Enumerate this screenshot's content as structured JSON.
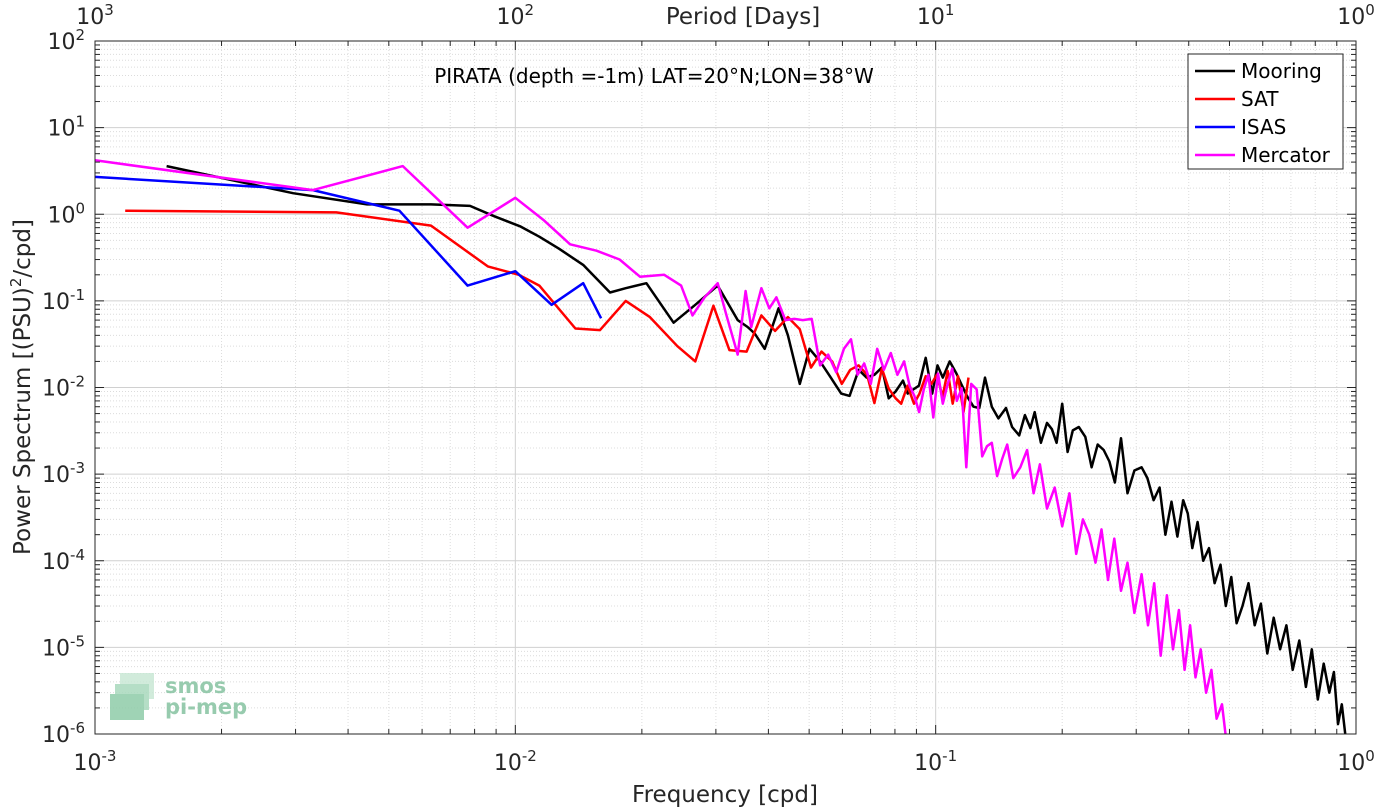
{
  "chart_data": {
    "type": "line",
    "title": "PIRATA (depth =-1m) LAT=20°N;LON=38°W",
    "xlabel": "Frequency [cpd]",
    "ylabel": "Power Spectrum [(PSU)^2/cpd]",
    "top_xlabel": "Period [Days]",
    "x_scale": "log",
    "y_scale": "log",
    "xlim": [
      0.001,
      1
    ],
    "ylim": [
      1e-06,
      100
    ],
    "grid": true,
    "legend_position": "top-right",
    "x_ticks": [
      {
        "value": 0.001,
        "base": "10",
        "exp": "-3"
      },
      {
        "value": 0.01,
        "base": "10",
        "exp": "-2"
      },
      {
        "value": 0.1,
        "base": "10",
        "exp": "-1"
      },
      {
        "value": 1,
        "base": "10",
        "exp": "0"
      }
    ],
    "top_x_ticks": [
      {
        "value": 0.001,
        "base": "10",
        "exp": "3"
      },
      {
        "value": 0.01,
        "base": "10",
        "exp": "2"
      },
      {
        "value": 0.1,
        "base": "10",
        "exp": "1"
      },
      {
        "value": 1,
        "base": "10",
        "exp": "0"
      }
    ],
    "y_ticks": [
      {
        "value": 100,
        "base": "10",
        "exp": "2"
      },
      {
        "value": 10,
        "base": "10",
        "exp": "1"
      },
      {
        "value": 1,
        "base": "10",
        "exp": "0"
      },
      {
        "value": 0.1,
        "base": "10",
        "exp": "-1"
      },
      {
        "value": 0.01,
        "base": "10",
        "exp": "-2"
      },
      {
        "value": 0.001,
        "base": "10",
        "exp": "-3"
      },
      {
        "value": 0.0001,
        "base": "10",
        "exp": "-4"
      },
      {
        "value": 1e-05,
        "base": "10",
        "exp": "-5"
      },
      {
        "value": 1e-06,
        "base": "10",
        "exp": "-6"
      }
    ],
    "series": [
      {
        "name": "Mooring",
        "color": "#000000",
        "x": [
          0.00148,
          0.00296,
          0.00444,
          0.0063,
          0.0078,
          0.0089,
          0.0103,
          0.0114,
          0.0127,
          0.0145,
          0.0168,
          0.0183,
          0.0205,
          0.0238,
          0.0268,
          0.0303,
          0.0338,
          0.0357,
          0.0371,
          0.0392,
          0.0423,
          0.0445,
          0.0475,
          0.0501,
          0.0531,
          0.0563,
          0.0596,
          0.0624,
          0.0656,
          0.0685,
          0.0715,
          0.0745,
          0.0773,
          0.0803,
          0.0836,
          0.0858,
          0.0885,
          0.0912,
          0.0947,
          0.0981,
          0.101,
          0.104,
          0.108,
          0.112,
          0.115,
          0.119,
          0.123,
          0.127,
          0.131,
          0.136,
          0.141,
          0.147,
          0.152,
          0.158,
          0.163,
          0.168,
          0.172,
          0.178,
          0.184,
          0.189,
          0.194,
          0.2,
          0.206,
          0.212,
          0.219,
          0.227,
          0.235,
          0.243,
          0.251,
          0.259,
          0.267,
          0.276,
          0.286,
          0.297,
          0.309,
          0.319,
          0.33,
          0.341,
          0.352,
          0.364,
          0.376,
          0.388,
          0.398,
          0.408,
          0.42,
          0.433,
          0.447,
          0.461,
          0.476,
          0.49,
          0.505,
          0.52,
          0.537,
          0.555,
          0.574,
          0.594,
          0.615,
          0.637,
          0.66,
          0.683,
          0.707,
          0.733,
          0.76,
          0.785,
          0.811,
          0.838,
          0.864,
          0.886,
          0.906,
          0.925,
          0.945
        ],
        "y": [
          3.6,
          1.75,
          1.3,
          1.3,
          1.25,
          0.95,
          0.72,
          0.55,
          0.4,
          0.26,
          0.125,
          0.14,
          0.16,
          0.056,
          0.09,
          0.15,
          0.06,
          0.05,
          0.042,
          0.028,
          0.082,
          0.04,
          0.011,
          0.028,
          0.02,
          0.013,
          0.0085,
          0.008,
          0.016,
          0.013,
          0.014,
          0.017,
          0.0075,
          0.009,
          0.012,
          0.0085,
          0.0095,
          0.0105,
          0.022,
          0.0085,
          0.018,
          0.013,
          0.02,
          0.0145,
          0.011,
          0.0078,
          0.006,
          0.0058,
          0.013,
          0.006,
          0.0044,
          0.0058,
          0.0035,
          0.0028,
          0.0048,
          0.0034,
          0.0052,
          0.0023,
          0.0039,
          0.0033,
          0.0023,
          0.0065,
          0.0018,
          0.0032,
          0.0035,
          0.0027,
          0.0012,
          0.0022,
          0.0019,
          0.0014,
          0.0008,
          0.0026,
          0.0006,
          0.0011,
          0.0012,
          0.0009,
          0.0005,
          0.0007,
          0.0002,
          0.00048,
          0.00019,
          0.0005,
          0.00035,
          0.00014,
          0.00028,
          0.0001,
          0.00014,
          5.5e-05,
          9e-05,
          3e-05,
          6.5e-05,
          1.9e-05,
          3e-05,
          5.5e-05,
          1.8e-05,
          3.2e-05,
          8.5e-06,
          2.2e-05,
          9.5e-06,
          1.8e-05,
          5.5e-06,
          1.2e-05,
          3.5e-06,
          9.5e-06,
          2.5e-06,
          6.5e-06,
          3e-06,
          5.2e-06,
          1.3e-06,
          2.2e-06,
          9e-07
        ]
      },
      {
        "name": "SAT",
        "color": "#ff0000",
        "x": [
          0.00118,
          0.00375,
          0.0063,
          0.0086,
          0.0102,
          0.0114,
          0.0139,
          0.0159,
          0.0183,
          0.0209,
          0.0243,
          0.0268,
          0.0296,
          0.0323,
          0.0355,
          0.0385,
          0.0415,
          0.0445,
          0.0475,
          0.0505,
          0.0535,
          0.0567,
          0.0598,
          0.0626,
          0.0656,
          0.0687,
          0.0715,
          0.0745,
          0.0773,
          0.0803,
          0.0828,
          0.0857,
          0.0888,
          0.0915,
          0.0947,
          0.0977,
          0.1007,
          0.1038,
          0.1068,
          0.1098,
          0.113,
          0.1165,
          0.1197
        ],
        "y": [
          1.1,
          1.05,
          0.74,
          0.25,
          0.2,
          0.15,
          0.048,
          0.046,
          0.1,
          0.065,
          0.03,
          0.02,
          0.088,
          0.027,
          0.026,
          0.068,
          0.045,
          0.065,
          0.047,
          0.017,
          0.026,
          0.02,
          0.011,
          0.016,
          0.018,
          0.014,
          0.0066,
          0.0165,
          0.0097,
          0.0075,
          0.0065,
          0.0105,
          0.0065,
          0.0085,
          0.0135,
          0.011,
          0.014,
          0.0078,
          0.0155,
          0.0065,
          0.0135,
          0.0052,
          0.013
        ]
      },
      {
        "name": "ISAS",
        "color": "#0000ff",
        "x": [
          0.001,
          0.0033,
          0.0053,
          0.0077,
          0.01,
          0.0122,
          0.0145,
          0.016
        ],
        "y": [
          2.7,
          1.9,
          1.1,
          0.15,
          0.22,
          0.09,
          0.16,
          0.063
        ]
      },
      {
        "name": "Mercator",
        "color": "#ff00ff",
        "x": [
          0.001,
          0.0033,
          0.0054,
          0.0077,
          0.01,
          0.0117,
          0.0135,
          0.0156,
          0.0177,
          0.0198,
          0.0226,
          0.0248,
          0.0264,
          0.0282,
          0.0303,
          0.0318,
          0.0338,
          0.0353,
          0.0364,
          0.0385,
          0.0402,
          0.0418,
          0.0439,
          0.0461,
          0.0483,
          0.0507,
          0.0531,
          0.0555,
          0.058,
          0.0605,
          0.0629,
          0.0652,
          0.0676,
          0.0701,
          0.0726,
          0.0753,
          0.0782,
          0.0811,
          0.0841,
          0.0867,
          0.089,
          0.0913,
          0.0937,
          0.0961,
          0.0987,
          0.1013,
          0.104,
          0.1068,
          0.1095,
          0.1123,
          0.1153,
          0.1183,
          0.1215,
          0.1252,
          0.129,
          0.1325,
          0.136,
          0.14,
          0.144,
          0.148,
          0.153,
          0.159,
          0.165,
          0.171,
          0.177,
          0.184,
          0.192,
          0.2,
          0.208,
          0.216,
          0.224,
          0.232,
          0.24,
          0.248,
          0.257,
          0.266,
          0.276,
          0.286,
          0.297,
          0.309,
          0.32,
          0.331,
          0.343,
          0.355,
          0.367,
          0.379,
          0.391,
          0.403,
          0.415,
          0.427,
          0.44,
          0.453,
          0.466,
          0.48,
          0.492
        ],
        "y": [
          4.2,
          1.9,
          3.6,
          0.7,
          1.55,
          0.85,
          0.45,
          0.38,
          0.3,
          0.19,
          0.2,
          0.15,
          0.068,
          0.11,
          0.16,
          0.068,
          0.024,
          0.13,
          0.05,
          0.14,
          0.082,
          0.11,
          0.06,
          0.062,
          0.06,
          0.062,
          0.018,
          0.024,
          0.015,
          0.028,
          0.036,
          0.014,
          0.019,
          0.011,
          0.028,
          0.016,
          0.025,
          0.014,
          0.02,
          0.0105,
          0.008,
          0.0052,
          0.0095,
          0.014,
          0.0045,
          0.0145,
          0.0065,
          0.011,
          0.0165,
          0.007,
          0.0098,
          0.0012,
          0.011,
          0.0095,
          0.0016,
          0.0021,
          0.0023,
          0.00095,
          0.0015,
          0.0022,
          0.0009,
          0.0012,
          0.0019,
          0.0006,
          0.0013,
          0.0004,
          0.0007,
          0.00025,
          0.0006,
          0.00012,
          0.0003,
          0.0002,
          9.5e-05,
          0.00023,
          6e-05,
          0.00018,
          4.5e-05,
          9.5e-05,
          2.5e-05,
          7e-05,
          1.8e-05,
          5.5e-05,
          8e-06,
          4e-05,
          9.5e-06,
          2.7e-05,
          5.5e-06,
          1.8e-05,
          4.5e-06,
          9.5e-06,
          3e-06,
          5.5e-06,
          1.5e-06,
          2.2e-06,
          8e-07
        ]
      }
    ]
  },
  "logo": {
    "line1": "smos",
    "line2": "pi-mep"
  }
}
